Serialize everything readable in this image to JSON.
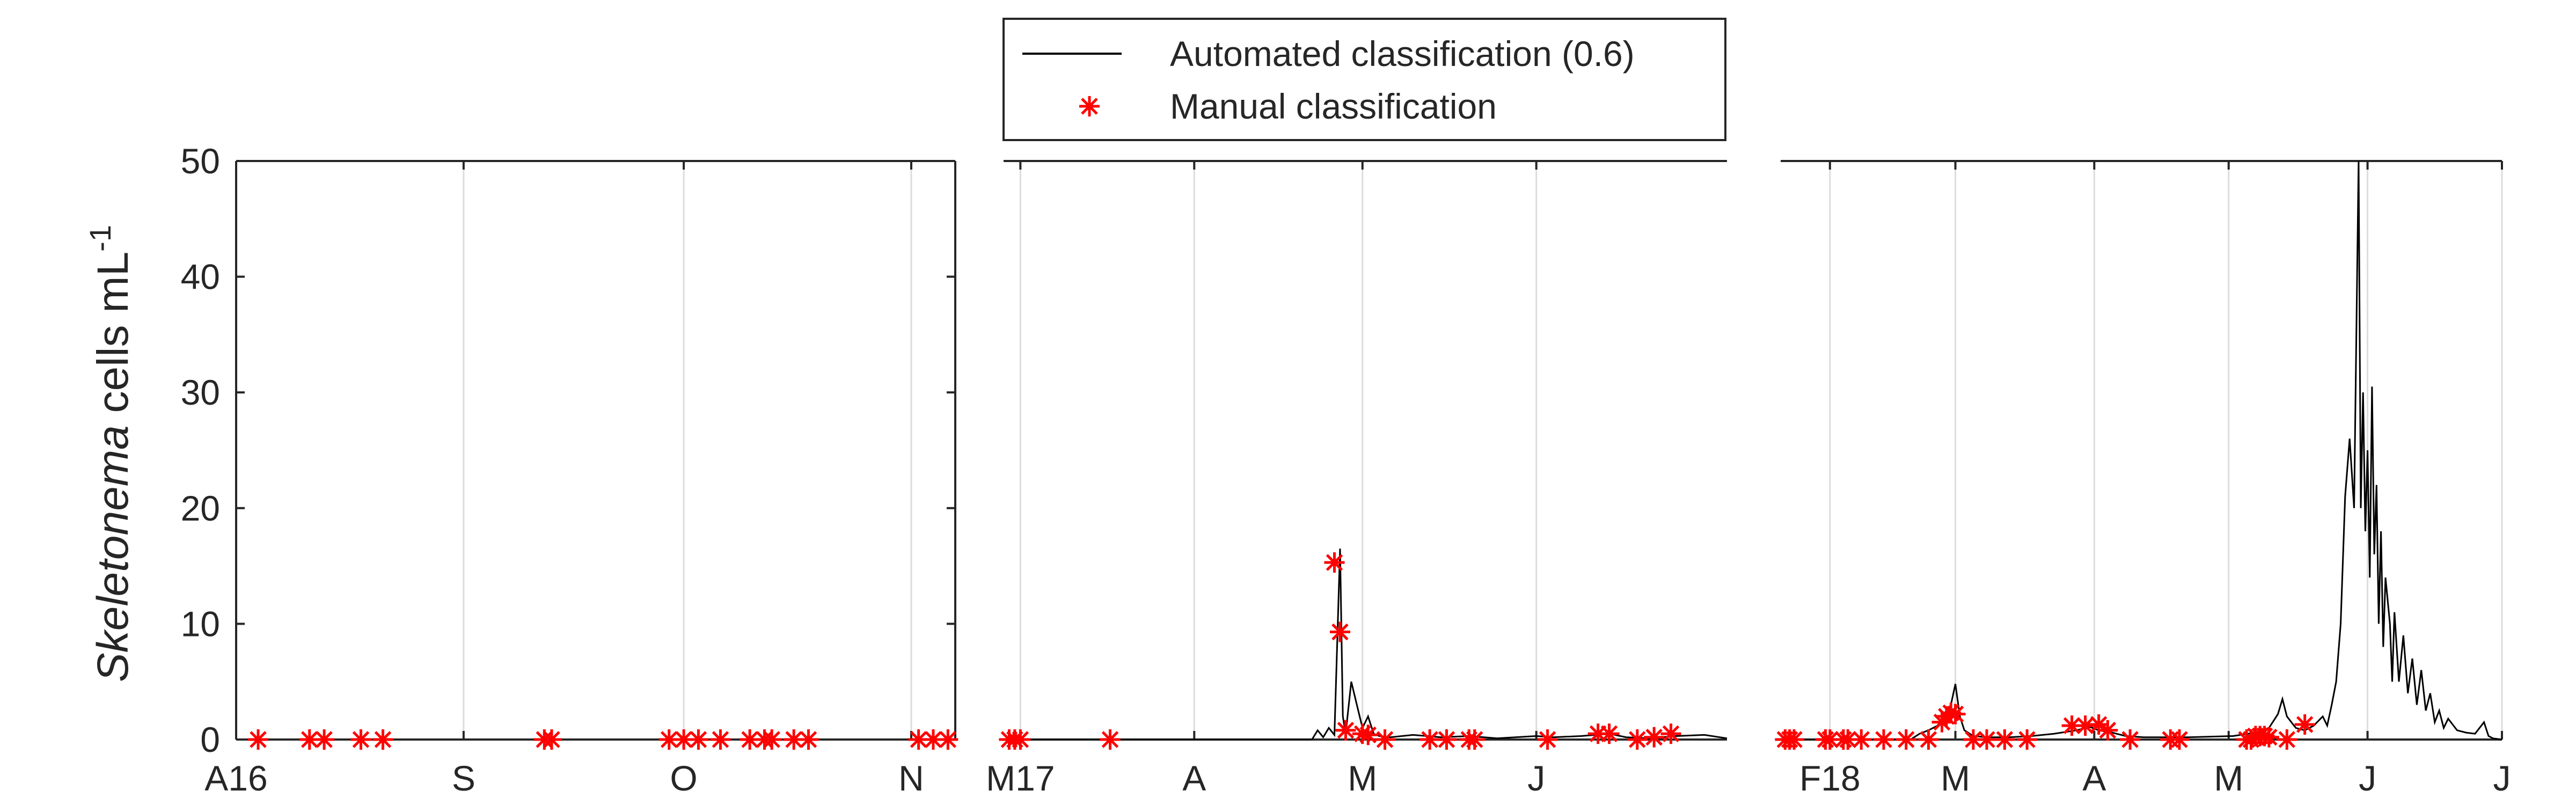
{
  "chart_data": {
    "type": "line",
    "ylabel": {
      "species": "Skeletonema",
      "unit": " cells mL",
      "exponent": "-1"
    },
    "ylim": [
      0,
      50
    ],
    "yticks": [
      0,
      10,
      20,
      30,
      40,
      50
    ],
    "grid": "vertical",
    "legend": {
      "placement": "top-center",
      "entries": [
        {
          "label": "Automated classification (0.6)",
          "style": "line",
          "color": "#000000"
        },
        {
          "label": "Manual classification",
          "style": "asterisk",
          "color": "#ff0000"
        }
      ]
    },
    "panels": [
      {
        "xrange": [
          0,
          98
        ],
        "xticks": [
          {
            "x": 0,
            "label": "A16"
          },
          {
            "x": 31,
            "label": "S"
          },
          {
            "x": 61,
            "label": "O"
          },
          {
            "x": 92,
            "label": "N"
          }
        ],
        "automated_series": [],
        "manual_points": [
          [
            3,
            0
          ],
          [
            10,
            0
          ],
          [
            12,
            0
          ],
          [
            17,
            0
          ],
          [
            20,
            0
          ],
          [
            42,
            0
          ],
          [
            43,
            0
          ],
          [
            59,
            0
          ],
          [
            61,
            0
          ],
          [
            63,
            0
          ],
          [
            66,
            0
          ],
          [
            70,
            0
          ],
          [
            72,
            0
          ],
          [
            73,
            0
          ],
          [
            76,
            0
          ],
          [
            78,
            0
          ],
          [
            93,
            0
          ],
          [
            95,
            0
          ],
          [
            97,
            0
          ]
        ]
      },
      {
        "xrange": [
          -3,
          126
        ],
        "xticks": [
          {
            "x": 0,
            "label": "M17"
          },
          {
            "x": 31,
            "label": "A"
          },
          {
            "x": 61,
            "label": "M"
          },
          {
            "x": 92,
            "label": "J"
          }
        ],
        "automated_series": [
          [
            -3,
            0
          ],
          [
            52,
            0
          ],
          [
            53,
            0.8
          ],
          [
            54,
            0.2
          ],
          [
            55,
            1.0
          ],
          [
            56,
            0.4
          ],
          [
            57,
            16.5
          ],
          [
            57.5,
            2.0
          ],
          [
            58,
            0.5
          ],
          [
            59,
            5.0
          ],
          [
            60,
            3.0
          ],
          [
            61,
            1.0
          ],
          [
            62,
            2.0
          ],
          [
            63,
            0.5
          ],
          [
            64,
            0.3
          ],
          [
            66,
            0.2
          ],
          [
            70,
            0.4
          ],
          [
            75,
            0.2
          ],
          [
            80,
            0.3
          ],
          [
            85,
            0.1
          ],
          [
            92,
            0.3
          ],
          [
            95,
            0.2
          ],
          [
            100,
            0.3
          ],
          [
            105,
            0.5
          ],
          [
            108,
            0.2
          ],
          [
            112,
            0.1
          ],
          [
            117,
            0.3
          ],
          [
            122,
            0.4
          ],
          [
            126,
            0.1
          ]
        ],
        "manual_points": [
          [
            -2,
            0
          ],
          [
            -1,
            0
          ],
          [
            0,
            0
          ],
          [
            16,
            0
          ],
          [
            56,
            15.3
          ],
          [
            57,
            9.3
          ],
          [
            58,
            0.8
          ],
          [
            61,
            0.5
          ],
          [
            62,
            0.4
          ],
          [
            65,
            0
          ],
          [
            73,
            0
          ],
          [
            76,
            0
          ],
          [
            80,
            0
          ],
          [
            81,
            0
          ],
          [
            94,
            0
          ],
          [
            103,
            0.5
          ],
          [
            105,
            0.5
          ],
          [
            110,
            0
          ],
          [
            113,
            0.2
          ],
          [
            116,
            0.5
          ]
        ]
      },
      {
        "xrange": [
          -11,
          150
        ],
        "xticks": [
          {
            "x": 0,
            "label": "F18"
          },
          {
            "x": 28,
            "label": "M"
          },
          {
            "x": 59,
            "label": "A"
          },
          {
            "x": 89,
            "label": "M"
          },
          {
            "x": 120,
            "label": "J"
          },
          {
            "x": 150,
            "label": "J"
          }
        ],
        "automated_series": [
          [
            -11,
            0
          ],
          [
            18,
            0
          ],
          [
            20,
            0.5
          ],
          [
            22,
            0.8
          ],
          [
            24,
            1.2
          ],
          [
            26,
            2.2
          ],
          [
            27,
            3.0
          ],
          [
            28,
            4.8
          ],
          [
            29,
            2.0
          ],
          [
            30,
            0.8
          ],
          [
            32,
            0.3
          ],
          [
            35,
            0.2
          ],
          [
            40,
            0.2
          ],
          [
            45,
            0.3
          ],
          [
            50,
            0.5
          ],
          [
            55,
            0.8
          ],
          [
            58,
            1.1
          ],
          [
            60,
            0.8
          ],
          [
            63,
            0.6
          ],
          [
            66,
            0.3
          ],
          [
            70,
            0.2
          ],
          [
            80,
            0.2
          ],
          [
            90,
            0.3
          ],
          [
            95,
            0.6
          ],
          [
            98,
            1.0
          ],
          [
            100,
            2.2
          ],
          [
            101,
            3.5
          ],
          [
            102,
            2.0
          ],
          [
            104,
            1.0
          ],
          [
            106,
            0.8
          ],
          [
            108,
            1.2
          ],
          [
            110,
            2.0
          ],
          [
            111,
            1.2
          ],
          [
            112,
            3.0
          ],
          [
            113,
            5.0
          ],
          [
            114,
            10.0
          ],
          [
            115,
            21.0
          ],
          [
            116,
            26.0
          ],
          [
            117,
            20.0
          ],
          [
            118,
            50.0
          ],
          [
            118.5,
            20.0
          ],
          [
            119,
            30.0
          ],
          [
            119.5,
            18.0
          ],
          [
            120,
            25.0
          ],
          [
            120.5,
            14.0
          ],
          [
            121,
            30.5
          ],
          [
            121.5,
            16.0
          ],
          [
            122,
            22.0
          ],
          [
            122.5,
            10.0
          ],
          [
            123,
            18.0
          ],
          [
            123.5,
            8.0
          ],
          [
            124,
            14.0
          ],
          [
            125,
            10.0
          ],
          [
            125.5,
            5.0
          ],
          [
            126,
            11.0
          ],
          [
            127,
            5.0
          ],
          [
            128,
            9.0
          ],
          [
            129,
            4.0
          ],
          [
            130,
            7.0
          ],
          [
            131,
            3.0
          ],
          [
            132,
            6.0
          ],
          [
            133,
            2.5
          ],
          [
            134,
            4.0
          ],
          [
            135,
            1.5
          ],
          [
            136,
            2.5
          ],
          [
            137,
            1.0
          ],
          [
            138,
            1.8
          ],
          [
            140,
            0.8
          ],
          [
            142,
            0.6
          ],
          [
            144,
            0.5
          ],
          [
            146,
            1.5
          ],
          [
            147,
            0.3
          ],
          [
            148,
            0.1
          ],
          [
            150,
            0
          ]
        ],
        "manual_points": [
          [
            -10,
            0
          ],
          [
            -9,
            0
          ],
          [
            -8,
            0
          ],
          [
            -1,
            0
          ],
          [
            0,
            0
          ],
          [
            3,
            0
          ],
          [
            4,
            0
          ],
          [
            7,
            0
          ],
          [
            12,
            0
          ],
          [
            17,
            0
          ],
          [
            22,
            0
          ],
          [
            25,
            1.5
          ],
          [
            26,
            2.0
          ],
          [
            27,
            2.3
          ],
          [
            28,
            2.2
          ],
          [
            32,
            0
          ],
          [
            35,
            0
          ],
          [
            39,
            0
          ],
          [
            44,
            0
          ],
          [
            54,
            1.2
          ],
          [
            57,
            1.2
          ],
          [
            60,
            1.3
          ],
          [
            62,
            0.8
          ],
          [
            67,
            0
          ],
          [
            76,
            0
          ],
          [
            78,
            0
          ],
          [
            93,
            0
          ],
          [
            94,
            0
          ],
          [
            95,
            0.3
          ],
          [
            96,
            0.3
          ],
          [
            97,
            0.3
          ],
          [
            98,
            0.2
          ],
          [
            102,
            0
          ],
          [
            106,
            1.3
          ]
        ]
      }
    ]
  }
}
